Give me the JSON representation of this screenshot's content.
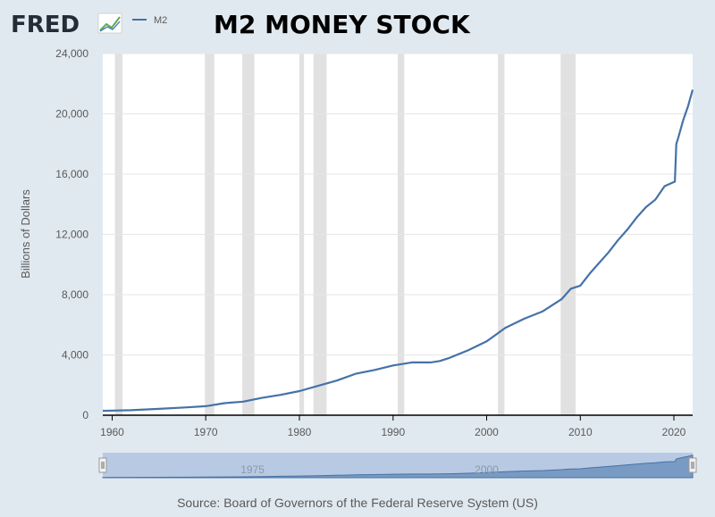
{
  "header": {
    "logo_text": "FRED",
    "logo_icon": "fred-chart-logo-icon",
    "legend_label": "M2",
    "title": "M2 MONEY STOCK"
  },
  "colors": {
    "background": "#e1e9f0",
    "plot_background": "#ffffff",
    "series_line": "#4572a7",
    "recession_band": "#e1e1e1",
    "navigator_fill": "#b8c9e3",
    "navigator_area": "#4572a7"
  },
  "source": "Source: Board of Governors of the Federal Reserve System (US)",
  "navigator": {
    "labels": [
      "1975",
      "2000"
    ],
    "label_years": [
      1975,
      2000
    ],
    "handle_icon": "grip-handle-icon"
  },
  "chart_data": {
    "type": "line",
    "title": "M2 MONEY STOCK",
    "xlabel": "",
    "ylabel": "Billions of Dollars",
    "xlim": [
      1959,
      2022
    ],
    "ylim": [
      0,
      24000
    ],
    "x_ticks": [
      "1960",
      "1970",
      "1980",
      "1990",
      "2000",
      "2010",
      "2020"
    ],
    "x_tick_values": [
      1960,
      1970,
      1980,
      1990,
      2000,
      2010,
      2020
    ],
    "y_ticks": [
      "0",
      "4,000",
      "8,000",
      "12,000",
      "16,000",
      "20,000",
      "24,000"
    ],
    "y_tick_values": [
      0,
      4000,
      8000,
      12000,
      16000,
      20000,
      24000
    ],
    "grid": "horizontal",
    "legend": "top-left",
    "recessions": [
      [
        1960.3,
        1961.1
      ],
      [
        1969.9,
        1970.9
      ],
      [
        1973.9,
        1975.2
      ],
      [
        1980.0,
        1980.5
      ],
      [
        1981.5,
        1982.9
      ],
      [
        1990.5,
        1991.2
      ],
      [
        2001.2,
        2001.9
      ],
      [
        2007.9,
        2009.5
      ]
    ],
    "series": [
      {
        "name": "M2",
        "x": [
          1959,
          1962,
          1965,
          1968,
          1970,
          1972,
          1974,
          1976,
          1978,
          1980,
          1982,
          1984,
          1986,
          1988,
          1990,
          1992,
          1994,
          1995,
          1996,
          1998,
          2000,
          2002,
          2004,
          2006,
          2008,
          2009,
          2010,
          2011,
          2012,
          2013,
          2014,
          2015,
          2016,
          2017,
          2018,
          2019,
          2020.1,
          2020.25,
          2020.5,
          2021,
          2021.5,
          2022
        ],
        "values": [
          290,
          330,
          420,
          520,
          600,
          800,
          900,
          1150,
          1350,
          1600,
          1950,
          2300,
          2750,
          3000,
          3300,
          3500,
          3500,
          3600,
          3800,
          4300,
          4900,
          5800,
          6400,
          6900,
          7700,
          8400,
          8600,
          9400,
          10100,
          10800,
          11600,
          12300,
          13100,
          13800,
          14300,
          15200,
          15500,
          18000,
          18500,
          19600,
          20500,
          21600
        ]
      }
    ]
  }
}
